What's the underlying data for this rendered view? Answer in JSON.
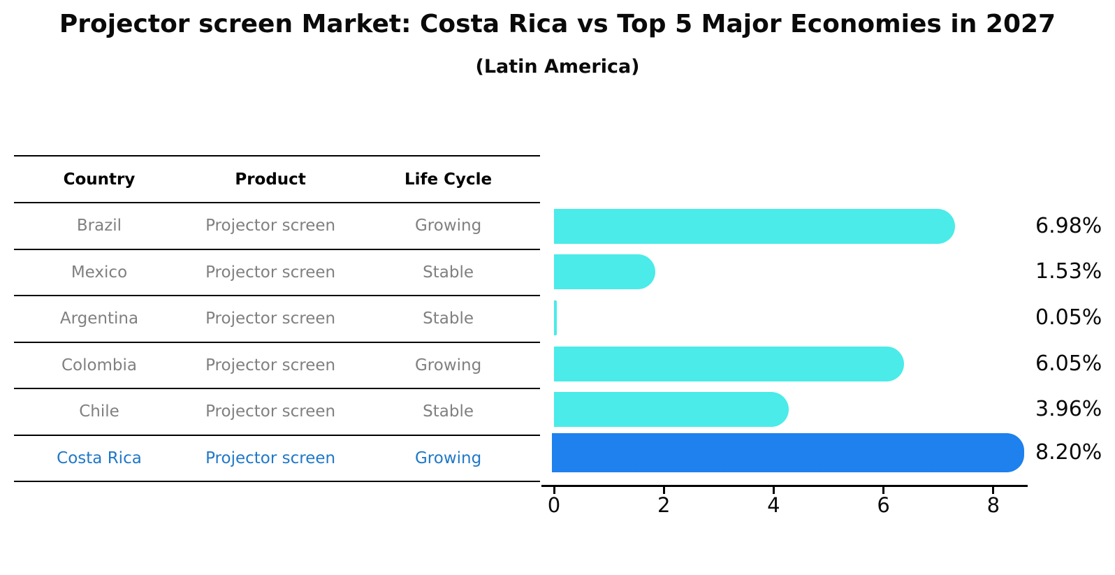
{
  "title": "Projector screen Market: Costa Rica vs Top 5 Major Economies in 2027",
  "subtitle": "(Latin America)",
  "table": {
    "headers": [
      "Country",
      "Product",
      "Life Cycle"
    ],
    "rows": [
      {
        "country": "Brazil",
        "product": "Projector screen",
        "life_cycle": "Growing",
        "highlighted": false
      },
      {
        "country": "Mexico",
        "product": "Projector screen",
        "life_cycle": "Stable",
        "highlighted": false
      },
      {
        "country": "Argentina",
        "product": "Projector screen",
        "life_cycle": "Stable",
        "highlighted": false
      },
      {
        "country": "Colombia",
        "product": "Projector screen",
        "life_cycle": "Growing",
        "highlighted": false
      },
      {
        "country": "Chile",
        "product": "Projector screen",
        "life_cycle": "Stable",
        "highlighted": false
      },
      {
        "country": "Costa Rica",
        "product": "Projector screen",
        "life_cycle": "Growing",
        "highlighted": true
      }
    ]
  },
  "chart_data": {
    "type": "bar",
    "orientation": "horizontal",
    "title": "Projector screen Market: Costa Rica vs Top 5 Major Economies in 2027 (Latin America)",
    "categories": [
      "Brazil",
      "Mexico",
      "Argentina",
      "Colombia",
      "Chile",
      "Costa Rica"
    ],
    "values": [
      6.98,
      1.53,
      0.05,
      6.05,
      3.96,
      8.2
    ],
    "value_labels": [
      "6.98%",
      "1.53%",
      "0.05%",
      "6.05%",
      "3.96%",
      "8.20%"
    ],
    "unit": "%",
    "xlim": [
      0,
      8.6
    ],
    "xticks": [
      0,
      2,
      4,
      6,
      8
    ],
    "xtick_labels": [
      "0",
      "2",
      "4",
      "6",
      "8"
    ],
    "grid": false,
    "legend": "none",
    "highlight_index": 5,
    "colors": {
      "default_bar": "#4AEBE8",
      "highlight_bar": "#1E81ED",
      "highlight_text": "#1F78C8",
      "row_text": "#808080",
      "axis": "#000000"
    }
  }
}
